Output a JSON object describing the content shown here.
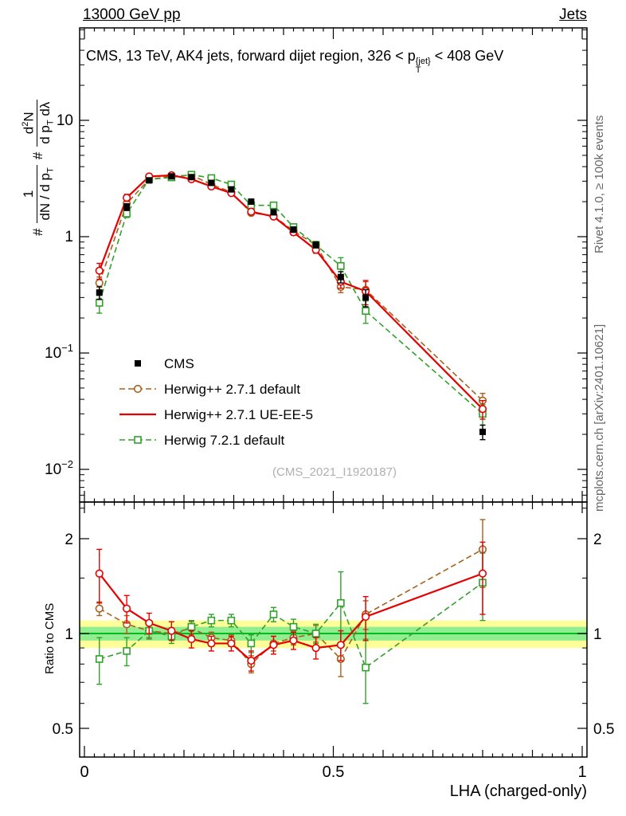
{
  "header": {
    "left": "13000 GeV pp",
    "right": "Jets"
  },
  "title": {
    "prefix": "CMS, 13 TeV, AK4 jets, forward dijet region, 326 < p",
    "sup": "{jet}",
    "sub": "T",
    "suffix": "< 408 GeV"
  },
  "watermark": "(CMS_2021_I1920187)",
  "side_notes": {
    "rivet": "Rivet 4.1.0, ≥ 100k events",
    "mcplots": "mcplots.cern.ch [arXiv:2401.10621]"
  },
  "axes": {
    "x_label": "LHA (charged-only)",
    "ratio_label": "Ratio to CMS",
    "y_label": {
      "hash1": "#",
      "frac1_num": "1",
      "frac1_den": "dN / d p",
      "frac1_den_sub": "T",
      "hash2": "#",
      "frac2_num": "d",
      "frac2_num_sup": "2",
      "frac2_num_tail": "N",
      "frac2_den": "d p",
      "frac2_den_sub": "T",
      "frac2_den_tail": " dλ"
    }
  },
  "chart_data": {
    "type": "line",
    "title": "CMS, 13 TeV, AK4 jets, forward dijet region, 326 < pT{jet} < 408 GeV",
    "xlabel": "LHA (charged-only)",
    "ylabel": "# 1/(dN/dpT) # d2N/(dpT dlambda)",
    "ratio_ylabel": "Ratio to CMS",
    "x_range": [
      0,
      1
    ],
    "main_y_scale": "log",
    "ratio_y_scale": "log",
    "x": [
      0.03,
      0.085,
      0.13,
      0.175,
      0.215,
      0.255,
      0.295,
      0.335,
      0.38,
      0.42,
      0.465,
      0.515,
      0.565,
      0.8
    ],
    "series": [
      {
        "name": "CMS",
        "color": "#000000",
        "marker": "filled-square",
        "line": "none",
        "show_marker_in_legend": true,
        "values": [
          0.33,
          1.8,
          3.05,
          3.3,
          3.25,
          2.9,
          2.55,
          2.0,
          1.62,
          1.15,
          0.85,
          0.45,
          0.3,
          0.021
        ],
        "err": [
          0.04,
          0.12,
          0.15,
          0.15,
          0.15,
          0.12,
          0.1,
          0.1,
          0.08,
          0.06,
          0.05,
          0.05,
          0.05,
          0.003
        ]
      },
      {
        "name": "Herwig++ 2.7.1 default",
        "color": "#a8611c",
        "marker": "open-circle",
        "line": "dashed",
        "show_marker_in_legend": true,
        "values": [
          0.4,
          1.93,
          3.11,
          3.3,
          3.38,
          2.81,
          2.42,
          1.6,
          1.51,
          1.12,
          0.85,
          0.37,
          0.35,
          0.039
        ],
        "err": [
          0.05,
          0.12,
          0.15,
          0.15,
          0.15,
          0.12,
          0.1,
          0.08,
          0.07,
          0.06,
          0.05,
          0.04,
          0.06,
          0.006
        ],
        "ratio": [
          1.2,
          1.07,
          1.02,
          1.0,
          1.04,
          0.97,
          0.95,
          0.8,
          0.93,
          0.97,
          1.0,
          0.83,
          1.15,
          1.85
        ],
        "ratio_err": [
          0.06,
          0.07,
          0.05,
          0.04,
          0.05,
          0.04,
          0.04,
          0.05,
          0.05,
          0.05,
          0.06,
          0.1,
          0.12,
          0.45
        ]
      },
      {
        "name": "Herwig++ 2.7.1 UE-EE-5",
        "color": "#e60000",
        "marker": "open-circle",
        "line": "solid",
        "show_marker_in_legend": false,
        "values": [
          0.51,
          2.16,
          3.29,
          3.37,
          3.12,
          2.7,
          2.37,
          1.64,
          1.49,
          1.09,
          0.77,
          0.41,
          0.34,
          0.033
        ],
        "err": [
          0.08,
          0.15,
          0.18,
          0.15,
          0.14,
          0.12,
          0.1,
          0.08,
          0.07,
          0.06,
          0.05,
          0.05,
          0.08,
          0.006
        ],
        "ratio": [
          1.55,
          1.2,
          1.08,
          1.02,
          0.96,
          0.93,
          0.93,
          0.82,
          0.92,
          0.95,
          0.9,
          0.92,
          1.13,
          1.55
        ],
        "ratio_err": [
          0.3,
          0.12,
          0.08,
          0.07,
          0.06,
          0.05,
          0.05,
          0.06,
          0.06,
          0.06,
          0.07,
          0.1,
          0.18,
          0.4
        ]
      },
      {
        "name": "Herwig 7.2.1 default",
        "color": "#33a02c",
        "marker": "open-square",
        "line": "dashed",
        "show_marker_in_legend": true,
        "values": [
          0.27,
          1.58,
          3.11,
          3.23,
          3.41,
          3.19,
          2.81,
          1.86,
          1.86,
          1.21,
          0.85,
          0.56,
          0.23,
          0.03
        ],
        "err": [
          0.05,
          0.12,
          0.15,
          0.15,
          0.15,
          0.12,
          0.1,
          0.08,
          0.08,
          0.07,
          0.06,
          0.1,
          0.05,
          0.006
        ],
        "ratio": [
          0.83,
          0.88,
          1.02,
          0.98,
          1.05,
          1.1,
          1.1,
          0.93,
          1.15,
          1.05,
          1.0,
          1.25,
          0.78,
          1.45
        ],
        "ratio_err": [
          0.14,
          0.09,
          0.06,
          0.05,
          0.05,
          0.05,
          0.05,
          0.06,
          0.06,
          0.06,
          0.07,
          0.32,
          0.18,
          0.35
        ]
      }
    ],
    "main_axis": {
      "scale": "log",
      "ticks": [
        {
          "v": 10,
          "label": "10"
        },
        {
          "v": 1,
          "label": "1"
        },
        {
          "v": 0.1,
          "base": "10",
          "exp": "−1"
        },
        {
          "v": 0.01,
          "base": "10",
          "exp": "−2"
        }
      ]
    },
    "ratio_axis": {
      "scale": "log",
      "ticks": [
        {
          "v": 2,
          "label": "2"
        },
        {
          "v": 1,
          "label": "1"
        },
        {
          "v": 0.5,
          "label": "0.5"
        }
      ],
      "minor_ticks": [
        0.6,
        0.7,
        0.8,
        0.9,
        1.5,
        2.5
      ]
    },
    "x_axis": {
      "ticks": [
        {
          "v": 0,
          "label": "0"
        },
        {
          "v": 0.5,
          "label": "0.5"
        },
        {
          "v": 1,
          "label": "1"
        }
      ]
    },
    "bands": {
      "yellow": [
        0.9,
        1.1
      ],
      "green": [
        0.95,
        1.05
      ],
      "line": 1.0,
      "yellow_color": "#ffff99",
      "green_color": "#90ee90",
      "line_color": "#00bb22"
    }
  }
}
